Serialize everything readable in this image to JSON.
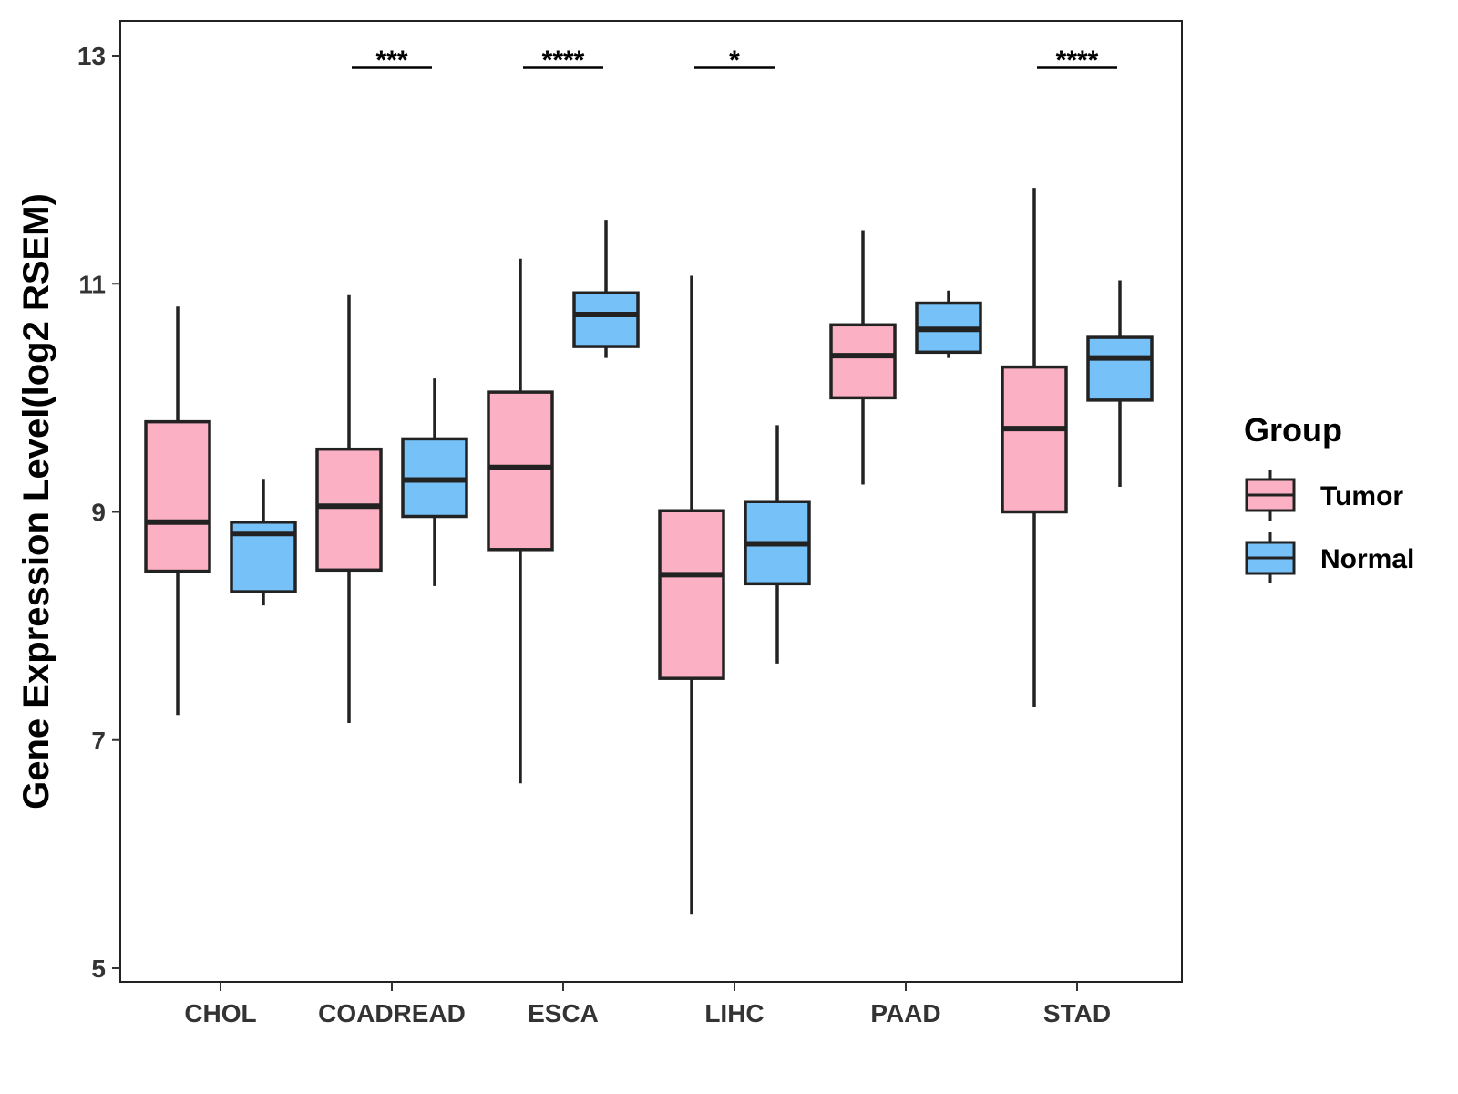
{
  "chart_data": {
    "type": "boxplot",
    "title": "",
    "xlabel": "",
    "ylabel": "Gene Expression Level(log2 RSEM)",
    "ylim": [
      4.8,
      13.3
    ],
    "yticks": [
      5,
      7,
      9,
      11,
      13
    ],
    "categories": [
      "CHOL",
      "COADREAD",
      "ESCA",
      "LIHC",
      "PAAD",
      "STAD"
    ],
    "legend": {
      "title": "Group",
      "position": "right",
      "entries": [
        {
          "name": "Tumor",
          "color": "#FBB1C3"
        },
        {
          "name": "Normal",
          "color": "#75C1F8"
        }
      ]
    },
    "series": [
      {
        "name": "Tumor",
        "color": "#FBB1C3",
        "boxes": [
          {
            "min": 7.22,
            "q1": 8.48,
            "median": 8.91,
            "q3": 9.79,
            "max": 10.8
          },
          {
            "min": 7.15,
            "q1": 8.49,
            "median": 9.05,
            "q3": 9.55,
            "max": 10.9
          },
          {
            "min": 6.62,
            "q1": 8.67,
            "median": 9.39,
            "q3": 10.05,
            "max": 11.22
          },
          {
            "min": 5.47,
            "q1": 7.54,
            "median": 8.45,
            "q3": 9.01,
            "max": 11.07
          },
          {
            "min": 9.24,
            "q1": 10.0,
            "median": 10.37,
            "q3": 10.64,
            "max": 11.47
          },
          {
            "min": 7.29,
            "q1": 9.0,
            "median": 9.73,
            "q3": 10.27,
            "max": 11.84
          }
        ]
      },
      {
        "name": "Normal",
        "color": "#75C1F8",
        "boxes": [
          {
            "min": 8.18,
            "q1": 8.3,
            "median": 8.81,
            "q3": 8.91,
            "max": 9.29
          },
          {
            "min": 8.35,
            "q1": 8.96,
            "median": 9.28,
            "q3": 9.64,
            "max": 10.17
          },
          {
            "min": 10.35,
            "q1": 10.45,
            "median": 10.73,
            "q3": 10.92,
            "max": 11.56
          },
          {
            "min": 7.67,
            "q1": 8.37,
            "median": 8.72,
            "q3": 9.09,
            "max": 9.76
          },
          {
            "min": 10.35,
            "q1": 10.4,
            "median": 10.6,
            "q3": 10.83,
            "max": 10.94
          },
          {
            "min": 9.22,
            "q1": 9.98,
            "median": 10.35,
            "q3": 10.53,
            "max": 11.03
          }
        ]
      }
    ],
    "significance": [
      {
        "category": "COADREAD",
        "label": "***"
      },
      {
        "category": "ESCA",
        "label": "****"
      },
      {
        "category": "LIHC",
        "label": "*"
      },
      {
        "category": "STAD",
        "label": "****"
      }
    ]
  }
}
